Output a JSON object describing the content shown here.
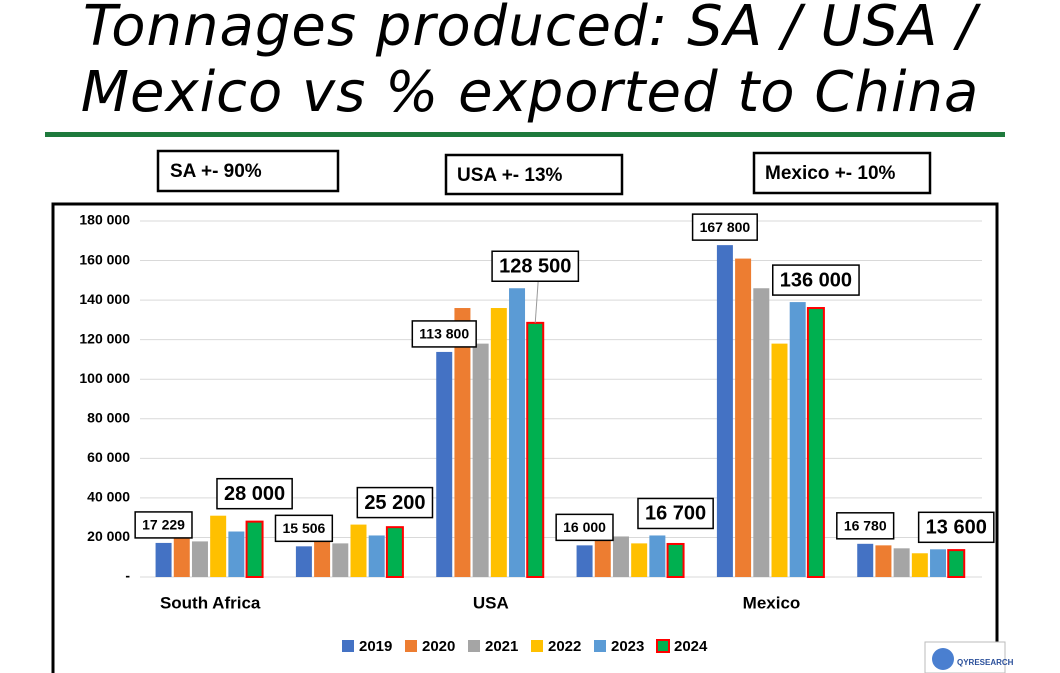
{
  "title": "Tonnages produced: SA / USA / Mexico vs % exported to China",
  "notes": [
    "SA +- 90%",
    "USA +- 13%",
    "Mexico +- 10%"
  ],
  "logo": "QYRESEARCH",
  "chart_data": {
    "type": "bar",
    "categories": [
      "South Africa",
      null,
      "USA",
      null,
      "Mexico",
      null
    ],
    "series": [
      {
        "name": "2019",
        "color": "#4472c4",
        "values": [
          17229,
          15506,
          113800,
          16000,
          167800,
          16780
        ],
        "value_labels": [
          "17 229",
          "15 506",
          "113 800",
          "16 000",
          "167 800",
          "16 780"
        ]
      },
      {
        "name": "2020",
        "color": "#ed7d31",
        "values": [
          20000,
          19000,
          136000,
          19000,
          161000,
          16000
        ]
      },
      {
        "name": "2021",
        "color": "#a5a5a5",
        "values": [
          18000,
          17000,
          118000,
          20500,
          146000,
          14500
        ]
      },
      {
        "name": "2022",
        "color": "#ffc000",
        "values": [
          31000,
          26500,
          136000,
          17000,
          118000,
          12000
        ]
      },
      {
        "name": "2023",
        "color": "#5b9bd5",
        "values": [
          23000,
          21000,
          146000,
          21000,
          139000,
          14000
        ]
      },
      {
        "name": "2024",
        "color": "#00b050",
        "edgecolor": "#ff0000",
        "values": [
          28000,
          25200,
          128500,
          16700,
          136000,
          13600
        ],
        "value_labels": [
          "28 000",
          "25 200",
          "128 500",
          "16 700",
          "136 000",
          "13 600"
        ]
      }
    ],
    "ylim": [
      0,
      180000
    ],
    "yticks": [
      {
        "value": 0,
        "label": "-"
      },
      {
        "value": 20000,
        "label": "20 000"
      },
      {
        "value": 40000,
        "label": "40 000"
      },
      {
        "value": 60000,
        "label": "60 000"
      },
      {
        "value": 80000,
        "label": "80 000"
      },
      {
        "value": 100000,
        "label": "100 000"
      },
      {
        "value": 120000,
        "label": "120 000"
      },
      {
        "value": 140000,
        "label": "140 000"
      },
      {
        "value": 160000,
        "label": "160 000"
      },
      {
        "value": 180000,
        "label": "180 000"
      }
    ],
    "grid": true,
    "legend": "bottom"
  }
}
